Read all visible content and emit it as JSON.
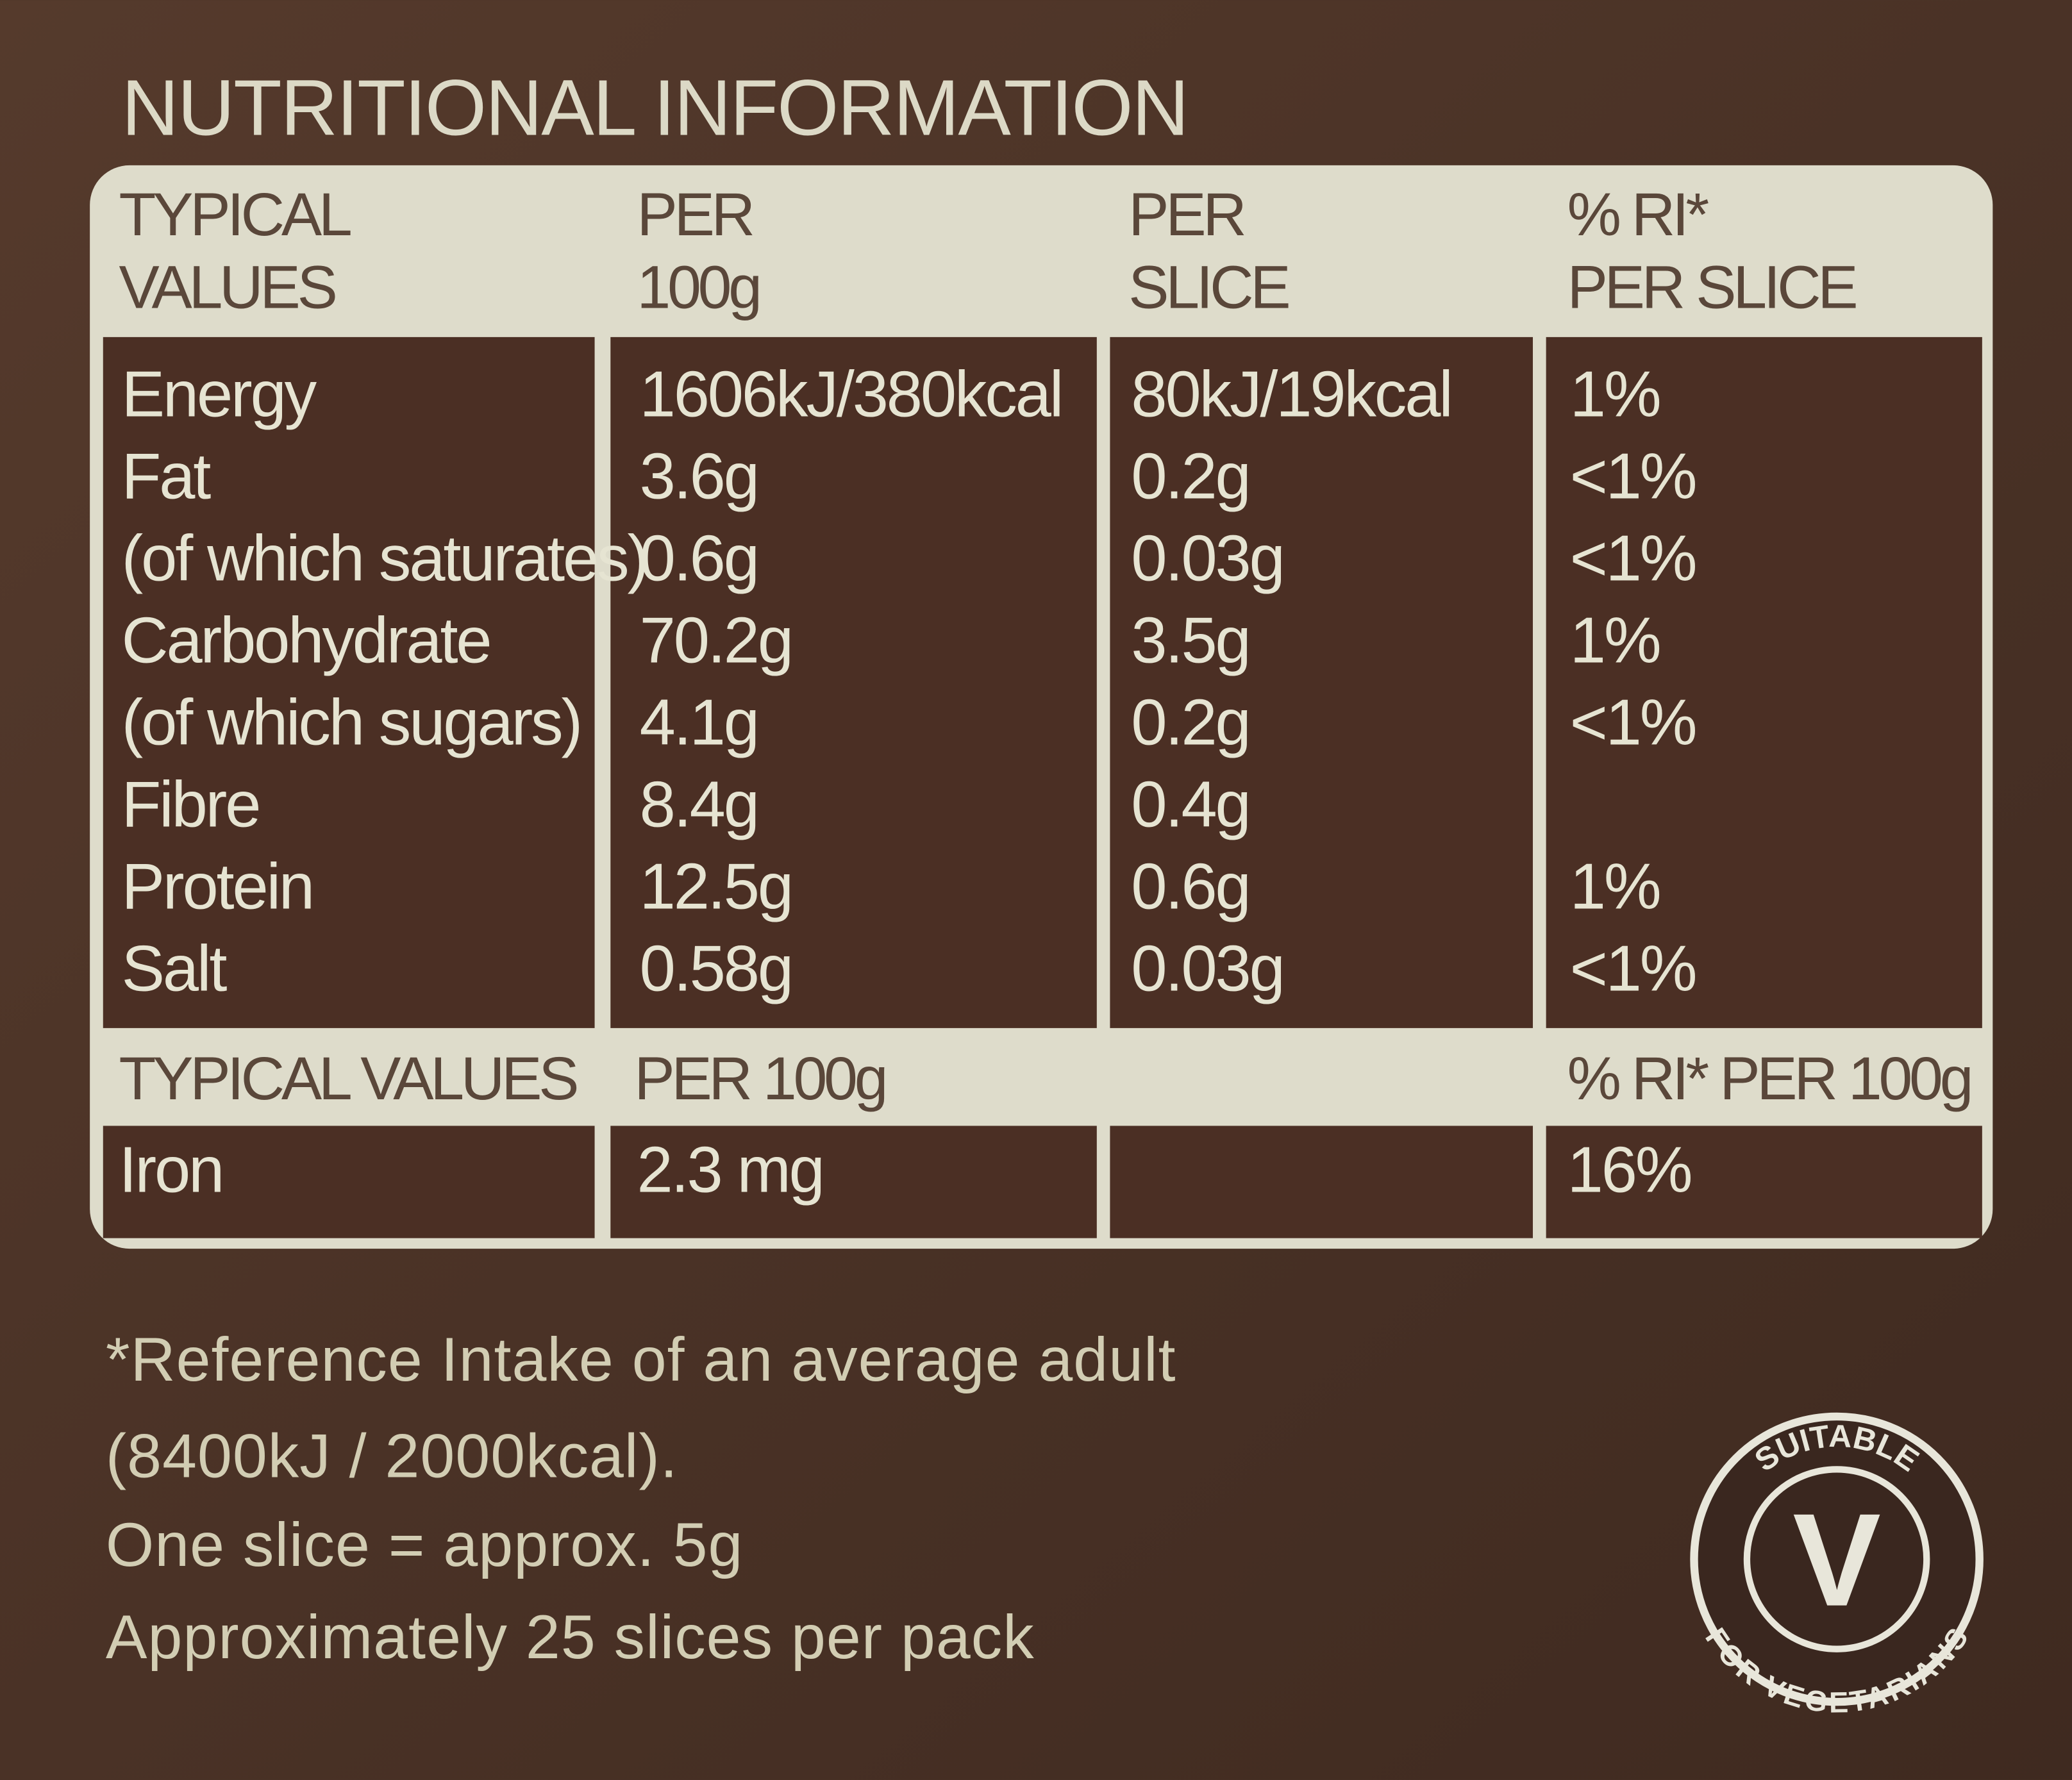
{
  "title": "NUTRITIONAL INFORMATION",
  "table": {
    "header": [
      [
        "TYPICAL",
        "VALUES"
      ],
      [
        "PER",
        "100g"
      ],
      [
        "PER",
        "SLICE"
      ],
      [
        "% RI*",
        "PER SLICE"
      ]
    ],
    "rows": [
      [
        "Energy",
        "1606kJ/380kcal",
        "80kJ/19kcal",
        "1%"
      ],
      [
        "Fat",
        "3.6g",
        "0.2g",
        "<1%"
      ],
      [
        "(of which saturates)",
        "0.6g",
        "0.03g",
        "<1%"
      ],
      [
        "Carbohydrate",
        "70.2g",
        "3.5g",
        "1%"
      ],
      [
        "(of which sugars)",
        "4.1g",
        "0.2g",
        "<1%"
      ],
      [
        "Fibre",
        "8.4g",
        "0.4g",
        null
      ],
      [
        "Protein",
        "12.5g",
        "0.6g",
        "1%"
      ],
      [
        "Salt",
        "0.58g",
        "0.03g",
        "<1%"
      ]
    ],
    "header2": [
      "TYPICAL VALUES",
      "PER 100g",
      null,
      "% RI* PER 100g"
    ],
    "rows2": [
      [
        "Iron",
        "2.3 mg",
        null,
        "16%"
      ]
    ]
  },
  "footnotes": [
    "*Reference Intake of an average adult",
    "(8400kJ / 2000kcal).",
    "One slice = approx. 5g",
    "Approximately 25 slices per pack"
  ],
  "badge": {
    "top": "SUITABLE",
    "bottom": "FOR VEGETARIANS",
    "symbol": "V"
  }
}
